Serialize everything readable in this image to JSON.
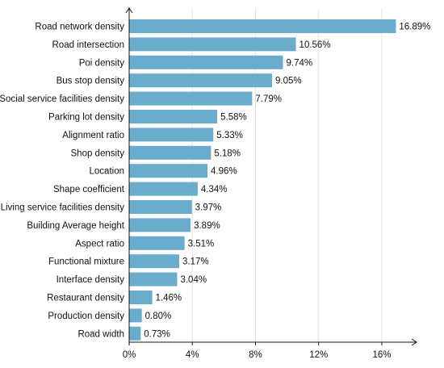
{
  "chart_data": {
    "type": "bar",
    "orientation": "horizontal",
    "categories": [
      "Road network density",
      "Road intersection",
      "Poi density",
      "Bus stop density",
      "Social service facilities density",
      "Parking lot density",
      "Alignment ratio",
      "Shop density",
      "Location",
      "Shape coefficient",
      "Living service facilities density",
      "Building Average height",
      "Aspect ratio",
      "Functional mixture",
      "Interface density",
      "Restaurant density",
      "Production density",
      "Road width"
    ],
    "values": [
      16.89,
      10.56,
      9.74,
      9.05,
      7.79,
      5.58,
      5.33,
      5.18,
      4.96,
      4.34,
      3.97,
      3.89,
      3.51,
      3.17,
      3.04,
      1.46,
      0.8,
      0.73
    ],
    "value_labels": [
      "16.89%",
      "10.56%",
      "9.74%",
      "9.05%",
      "7.79%",
      "5.58%",
      "5.33%",
      "5.18%",
      "4.96%",
      "4.34%",
      "3.97%",
      "3.89%",
      "3.51%",
      "3.17%",
      "3.04%",
      "1.46%",
      "0.80%",
      "0.73%"
    ],
    "x_ticks": [
      0,
      4,
      8,
      12,
      16
    ],
    "x_tick_labels": [
      "0%",
      "4%",
      "8%",
      "12%",
      "16%"
    ],
    "xlim": [
      0,
      18.2
    ],
    "grid": true,
    "bar_color": "#6aaccc",
    "title": "",
    "xlabel": "",
    "ylabel": ""
  }
}
